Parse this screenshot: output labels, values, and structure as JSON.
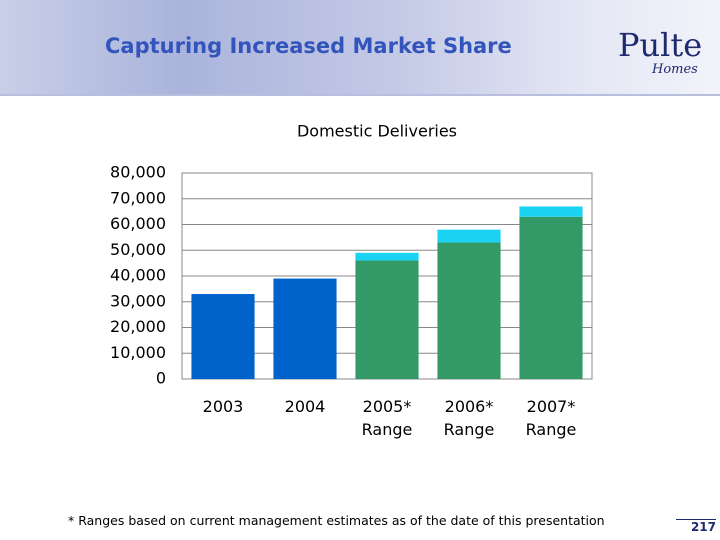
{
  "header": {
    "title": "Capturing Increased Market Share"
  },
  "logo": {
    "name": "Pulte",
    "sub": "Homes"
  },
  "chart_data": {
    "type": "bar",
    "stacked": true,
    "title": "Domestic Deliveries",
    "categories": [
      "2003",
      "2004",
      "2005*\nRange",
      "2006*\nRange",
      "2007*\nRange"
    ],
    "series": [
      {
        "color": "#0063cc",
        "values": [
          33000,
          39000,
          null,
          null,
          null
        ]
      },
      {
        "color": "#339966",
        "values": [
          null,
          null,
          46000,
          53000,
          63000
        ]
      },
      {
        "color": "#1ad2f2",
        "values": [
          null,
          null,
          3000,
          5000,
          4000
        ]
      }
    ],
    "ylim": [
      0,
      80000
    ],
    "yticks": [
      0,
      {
        "value": 10000,
        "label": "10,000"
      },
      {
        "value": 20000,
        "label": "20,000"
      },
      {
        "value": 30000,
        "label": "30,000"
      },
      {
        "value": 40000,
        "label": "40,000"
      },
      {
        "value": 50000,
        "label": "50,000"
      },
      {
        "value": 60000,
        "label": "60,000"
      },
      {
        "value": 70000,
        "label": "70,000"
      },
      {
        "value": 80000,
        "label": "80,000"
      }
    ],
    "grid": true
  },
  "footnote": "* Ranges based on current management estimates as of the date of this presentation",
  "page_number": "217"
}
